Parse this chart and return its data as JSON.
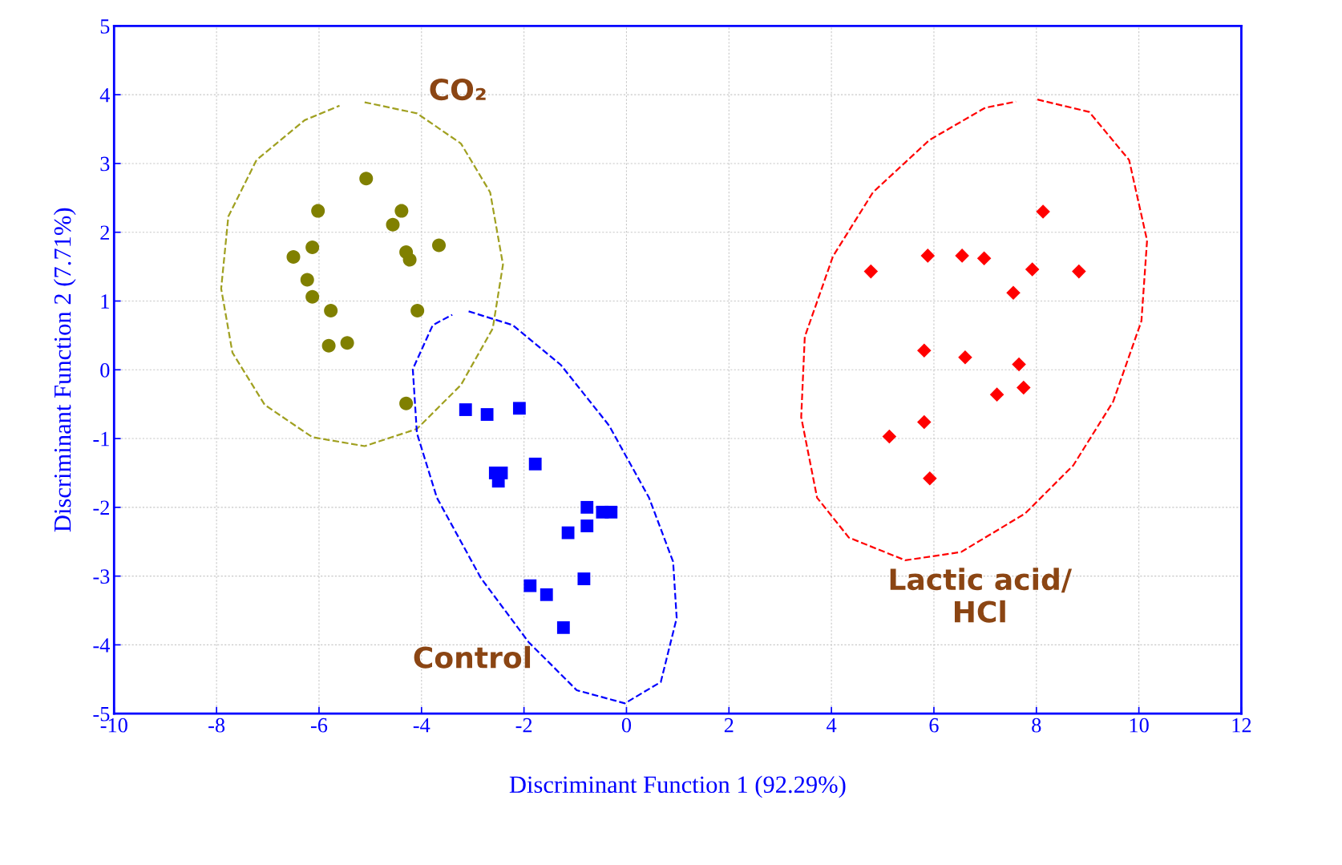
{
  "chart_data": {
    "type": "scatter",
    "xlabel": "Discriminant Function 1 (92.29%)",
    "ylabel": "Discriminant Function 2 (7.71%)",
    "xlim": [
      -10,
      12
    ],
    "xticks": [
      -10,
      -8,
      -6,
      -4,
      -2,
      0,
      2,
      4,
      6,
      8,
      10,
      12
    ],
    "ylim": [
      -5,
      5
    ],
    "yticks": [
      -5,
      -4,
      -3,
      -2,
      -1,
      0,
      1,
      2,
      3,
      4,
      5
    ],
    "grid": true,
    "series": [
      {
        "marker": "circle",
        "color": "#808000",
        "x": [
          -5.08,
          -6.02,
          -4.39,
          -4.56,
          -6.13,
          -3.66,
          -4.3,
          -4.23,
          -6.5,
          -6.23,
          -6.13,
          -5.77,
          -4.08,
          -5.81,
          -5.45,
          -4.3
        ],
        "values": [
          2.78,
          2.31,
          2.31,
          2.11,
          1.78,
          1.81,
          1.71,
          1.6,
          1.64,
          1.31,
          1.06,
          0.86,
          0.86,
          0.35,
          0.39,
          -0.49
        ]
      },
      {
        "marker": "square",
        "color": "#0000ff",
        "x": [
          -3.14,
          -2.72,
          -2.09,
          -1.78,
          -2.56,
          -2.44,
          -2.5,
          -0.77,
          -0.47,
          -0.3,
          -0.77,
          -1.14,
          -1.88,
          -0.83,
          -1.56,
          -1.23
        ],
        "values": [
          -0.58,
          -0.65,
          -0.56,
          -1.37,
          -1.5,
          -1.5,
          -1.62,
          -2.0,
          -2.07,
          -2.07,
          -2.27,
          -2.37,
          -3.14,
          -3.04,
          -3.27,
          -3.75
        ]
      },
      {
        "marker": "diamond",
        "color": "#ff0000",
        "x": [
          8.13,
          4.77,
          5.88,
          6.55,
          6.98,
          7.92,
          8.83,
          7.55,
          5.81,
          6.61,
          7.66,
          7.23,
          7.75,
          5.81,
          5.13,
          5.92
        ],
        "values": [
          2.3,
          1.43,
          1.66,
          1.66,
          1.62,
          1.46,
          1.43,
          1.12,
          0.28,
          0.18,
          0.08,
          -0.36,
          -0.26,
          -0.76,
          -0.97,
          -1.58
        ]
      },
      {
        "type": "line",
        "line_style": "dashed",
        "marker": "none",
        "color": "#a0a020",
        "x": [
          -5.11,
          -4.09,
          -3.23,
          -2.66,
          -2.41,
          -2.61,
          -3.23,
          -4.09,
          -5.11,
          -6.13,
          -7.06,
          -7.69,
          -7.91,
          -7.77,
          -7.22,
          -6.28,
          -5.6
        ],
        "values": [
          3.89,
          3.73,
          3.29,
          2.58,
          1.53,
          0.6,
          -0.22,
          -0.86,
          -1.11,
          -0.98,
          -0.51,
          0.25,
          1.18,
          2.23,
          3.05,
          3.63,
          3.84
        ]
      },
      {
        "type": "line",
        "line_style": "dashed",
        "marker": "none",
        "color": "#0000ff",
        "x": [
          -3.08,
          -2.22,
          -1.28,
          -0.34,
          0.44,
          0.91,
          0.98,
          0.67,
          -0.03,
          -0.97,
          -1.91,
          -2.84,
          -3.7,
          -4.09,
          -4.17,
          -3.78,
          -3.4
        ],
        "values": [
          0.85,
          0.65,
          0.07,
          -0.81,
          -1.86,
          -2.79,
          -3.61,
          -4.54,
          -4.85,
          -4.66,
          -3.96,
          -3.03,
          -1.86,
          -0.92,
          0.01,
          0.65,
          0.8
        ]
      },
      {
        "type": "line",
        "line_style": "dashed",
        "marker": "none",
        "color": "#ff0000",
        "x": [
          8.02,
          9.03,
          9.81,
          10.16,
          10.05,
          9.5,
          8.72,
          7.78,
          6.53,
          5.44,
          4.34,
          3.72,
          3.41,
          3.48,
          4.03,
          4.81,
          5.91,
          7.0,
          7.6
        ],
        "values": [
          3.93,
          3.75,
          3.05,
          1.88,
          0.71,
          -0.46,
          -1.39,
          -2.09,
          -2.65,
          -2.77,
          -2.44,
          -1.86,
          -0.69,
          0.48,
          1.65,
          2.58,
          3.34,
          3.81,
          3.9
        ]
      }
    ],
    "annotations": [
      "CO₂",
      "Control",
      "Lactic acid/\nHCl"
    ]
  }
}
